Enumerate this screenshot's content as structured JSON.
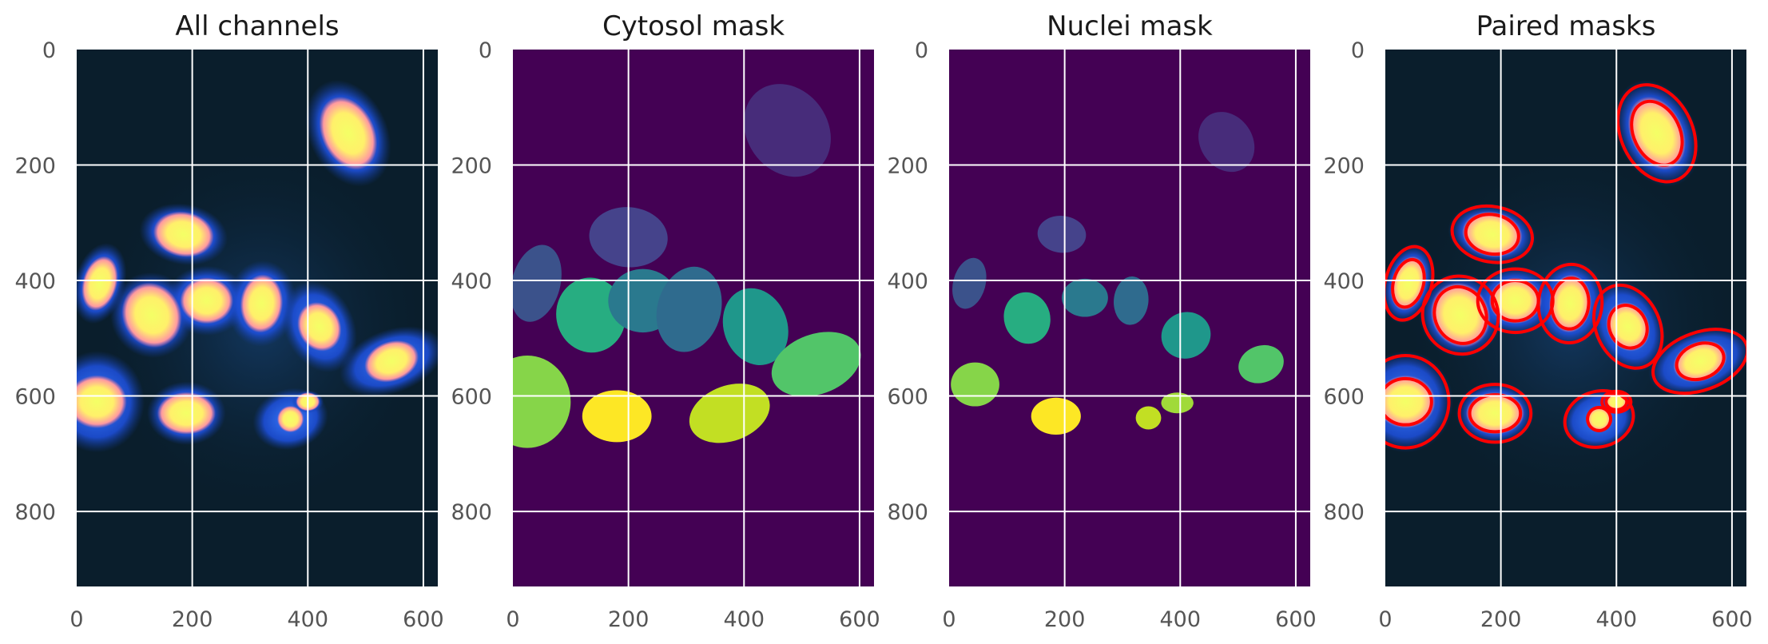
{
  "panels": [
    {
      "title": "All channels",
      "kind": "fluorescence",
      "xticks": [
        "0",
        "200",
        "400",
        "600"
      ],
      "yticks": [
        "0",
        "200",
        "400",
        "600",
        "800"
      ],
      "cells": [
        {
          "x": 470,
          "y": 145,
          "rx": 62,
          "ry": 88,
          "rot": -25,
          "nrx": 40,
          "nry": 58
        },
        {
          "x": 185,
          "y": 320,
          "rx": 70,
          "ry": 48,
          "rot": 10,
          "nrx": 46,
          "nry": 34
        },
        {
          "x": 40,
          "y": 405,
          "rx": 40,
          "ry": 65,
          "rot": 15,
          "nrx": 26,
          "nry": 42
        },
        {
          "x": 130,
          "y": 460,
          "rx": 65,
          "ry": 68,
          "rot": -25,
          "nrx": 44,
          "nry": 50
        },
        {
          "x": 225,
          "y": 435,
          "rx": 65,
          "ry": 55,
          "rot": 0,
          "nrx": 40,
          "nry": 35
        },
        {
          "x": 320,
          "y": 440,
          "rx": 55,
          "ry": 68,
          "rot": 5,
          "nrx": 32,
          "nry": 44
        },
        {
          "x": 420,
          "y": 480,
          "rx": 55,
          "ry": 75,
          "rot": -25,
          "nrx": 32,
          "nry": 38
        },
        {
          "x": 545,
          "y": 540,
          "rx": 85,
          "ry": 50,
          "rot": -20,
          "nrx": 42,
          "nry": 30
        },
        {
          "x": 35,
          "y": 610,
          "rx": 75,
          "ry": 80,
          "rot": 0,
          "nrx": 45,
          "nry": 40
        },
        {
          "x": 190,
          "y": 630,
          "rx": 62,
          "ry": 50,
          "rot": 0,
          "nrx": 44,
          "nry": 32
        },
        {
          "x": 370,
          "y": 640,
          "rx": 60,
          "ry": 48,
          "rot": -15,
          "nrx": 20,
          "nry": 20
        },
        {
          "x": 400,
          "y": 610,
          "rx": 25,
          "ry": 18,
          "rot": 0,
          "nrx": 18,
          "nry": 14
        }
      ]
    },
    {
      "title": "Cytosol mask",
      "kind": "mask",
      "xticks": [
        "0",
        "200",
        "400",
        "600"
      ],
      "yticks": [
        "0",
        "200",
        "400",
        "600",
        "800"
      ],
      "regions": [
        {
          "x": 475,
          "y": 140,
          "rx": 70,
          "ry": 85,
          "rot": -35,
          "color": "#472c7a"
        },
        {
          "x": 200,
          "y": 325,
          "rx": 68,
          "ry": 52,
          "rot": 5,
          "color": "#45438b"
        },
        {
          "x": 40,
          "y": 405,
          "rx": 42,
          "ry": 68,
          "rot": 15,
          "color": "#3b528b"
        },
        {
          "x": 135,
          "y": 460,
          "rx": 60,
          "ry": 65,
          "rot": -10,
          "color": "#27ad81"
        },
        {
          "x": 225,
          "y": 435,
          "rx": 60,
          "ry": 55,
          "rot": 0,
          "color": "#2a798e"
        },
        {
          "x": 305,
          "y": 450,
          "rx": 55,
          "ry": 75,
          "rot": 15,
          "color": "#2f6b8e"
        },
        {
          "x": 420,
          "y": 480,
          "rx": 55,
          "ry": 68,
          "rot": -20,
          "color": "#1f978b"
        },
        {
          "x": 525,
          "y": 545,
          "rx": 80,
          "ry": 52,
          "rot": -20,
          "color": "#52c569"
        },
        {
          "x": 25,
          "y": 610,
          "rx": 75,
          "ry": 80,
          "rot": 0,
          "color": "#86d549"
        },
        {
          "x": 180,
          "y": 635,
          "rx": 60,
          "ry": 45,
          "rot": 0,
          "color": "#fde725"
        },
        {
          "x": 375,
          "y": 630,
          "rx": 72,
          "ry": 48,
          "rot": -20,
          "color": "#c2df23"
        }
      ]
    },
    {
      "title": "Nuclei mask",
      "kind": "mask",
      "xticks": [
        "0",
        "200",
        "400",
        "600"
      ],
      "yticks": [
        "0",
        "200",
        "400",
        "600",
        "800"
      ],
      "regions": [
        {
          "x": 480,
          "y": 160,
          "rx": 45,
          "ry": 55,
          "rot": -35,
          "color": "#472c7a"
        },
        {
          "x": 195,
          "y": 320,
          "rx": 42,
          "ry": 32,
          "rot": 5,
          "color": "#45438b"
        },
        {
          "x": 35,
          "y": 405,
          "rx": 28,
          "ry": 45,
          "rot": 15,
          "color": "#3b528b"
        },
        {
          "x": 135,
          "y": 465,
          "rx": 40,
          "ry": 45,
          "rot": -15,
          "color": "#27ad81"
        },
        {
          "x": 235,
          "y": 430,
          "rx": 40,
          "ry": 33,
          "rot": 0,
          "color": "#2a798e"
        },
        {
          "x": 315,
          "y": 435,
          "rx": 30,
          "ry": 42,
          "rot": 5,
          "color": "#2f6b8e"
        },
        {
          "x": 410,
          "y": 495,
          "rx": 43,
          "ry": 40,
          "rot": -20,
          "color": "#1f978b"
        },
        {
          "x": 540,
          "y": 545,
          "rx": 40,
          "ry": 32,
          "rot": -20,
          "color": "#52c569"
        },
        {
          "x": 45,
          "y": 580,
          "rx": 42,
          "ry": 38,
          "rot": 0,
          "color": "#86d549"
        },
        {
          "x": 185,
          "y": 635,
          "rx": 43,
          "ry": 32,
          "rot": 0,
          "color": "#fde725"
        },
        {
          "x": 345,
          "y": 638,
          "rx": 22,
          "ry": 20,
          "rot": 0,
          "color": "#c2df23"
        },
        {
          "x": 395,
          "y": 612,
          "rx": 28,
          "ry": 18,
          "rot": 0,
          "color": "#a0da39"
        }
      ]
    },
    {
      "title": "Paired masks",
      "kind": "paired",
      "xticks": [
        "0",
        "200",
        "400",
        "600"
      ],
      "yticks": [
        "0",
        "200",
        "400",
        "600",
        "800"
      ]
    }
  ],
  "colors": {
    "background_mask": "#440154",
    "fluor_bg": "#0a1e2c",
    "outline": "#ff0000",
    "grid": "#ffffff"
  }
}
